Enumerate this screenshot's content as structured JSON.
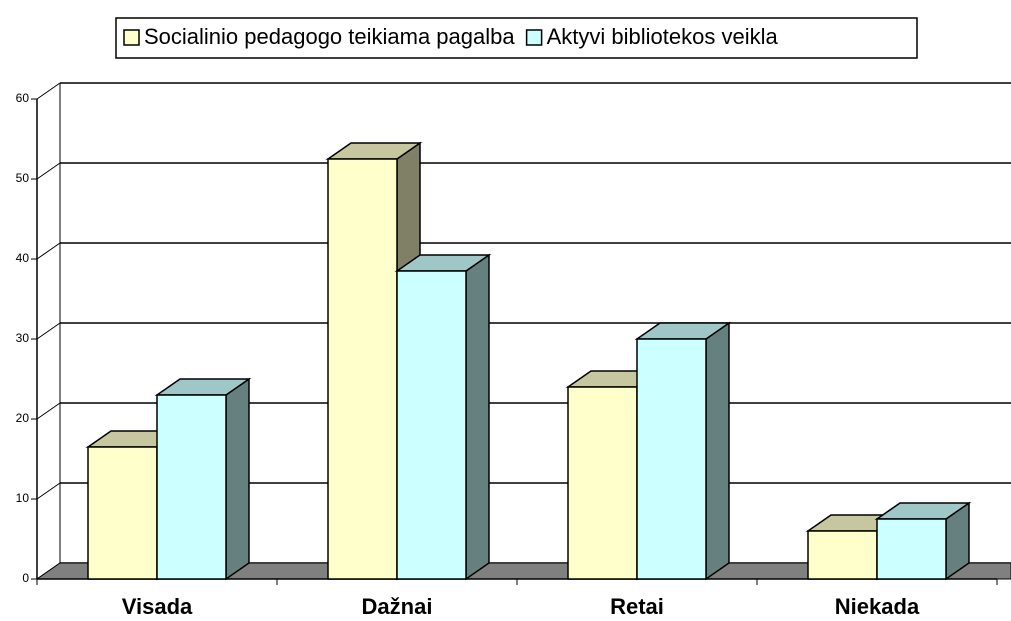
{
  "chart_data": {
    "type": "bar3d",
    "categories": [
      "Visada",
      "Dažnai",
      "Retai",
      "Niekada"
    ],
    "series": [
      {
        "name": "Socialinio pedagogo teikiama pagalba",
        "color": "#ffffcc",
        "values": [
          16.5,
          52.5,
          24,
          6
        ]
      },
      {
        "name": "Aktyvi bibliotekos veikla",
        "color": "#ccffff",
        "values": [
          23,
          38.5,
          30,
          7.5
        ]
      }
    ],
    "ylim": [
      0,
      60
    ],
    "yticks": [
      0,
      10,
      20,
      30,
      40,
      50,
      60
    ],
    "grid": true,
    "legend": "top"
  }
}
